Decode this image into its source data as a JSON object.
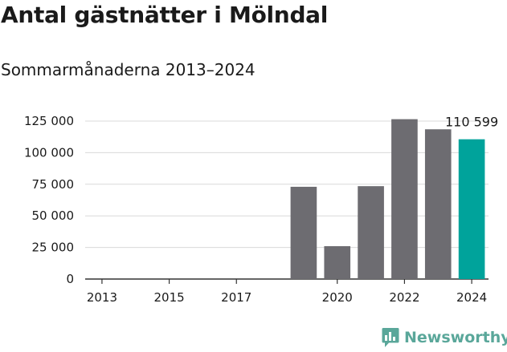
{
  "title": "Antal gästnätter i Mölndal",
  "subtitle": "Sommarmånaderna 2013–2024",
  "brand": {
    "name": "Newsworthy",
    "icon": "bar-chart-logo-icon",
    "color": "#5aa79a"
  },
  "colors": {
    "bar": "#6d6c71",
    "highlight": "#00a39b",
    "grid": "#d9d9d9",
    "axis": "#333333",
    "text": "#1a1a1a"
  },
  "chart_data": {
    "type": "bar",
    "title": "Antal gästnätter i Mölndal",
    "subtitle": "Sommarmånaderna 2013–2024",
    "categories": [
      "2013",
      "2014",
      "2015",
      "2016",
      "2017",
      "2018",
      "2019",
      "2020",
      "2021",
      "2022",
      "2023",
      "2024"
    ],
    "values": [
      null,
      null,
      null,
      null,
      null,
      null,
      73000,
      26000,
      73500,
      126500,
      118500,
      110599
    ],
    "highlight_category": "2024",
    "data_labels": [
      {
        "category": "2024",
        "text": "110 599"
      }
    ],
    "ylim": [
      0,
      125000
    ],
    "yticks": [
      0,
      25000,
      50000,
      75000,
      100000,
      125000
    ],
    "ytick_labels": [
      "0",
      "25 000",
      "50 000",
      "75 000",
      "100 000",
      "125 000"
    ],
    "xtick_labels": [
      "2013",
      "2015",
      "2017",
      "2020",
      "2022",
      "2024"
    ],
    "xlabel": "",
    "ylabel": "",
    "grid": true,
    "legend": "none"
  }
}
